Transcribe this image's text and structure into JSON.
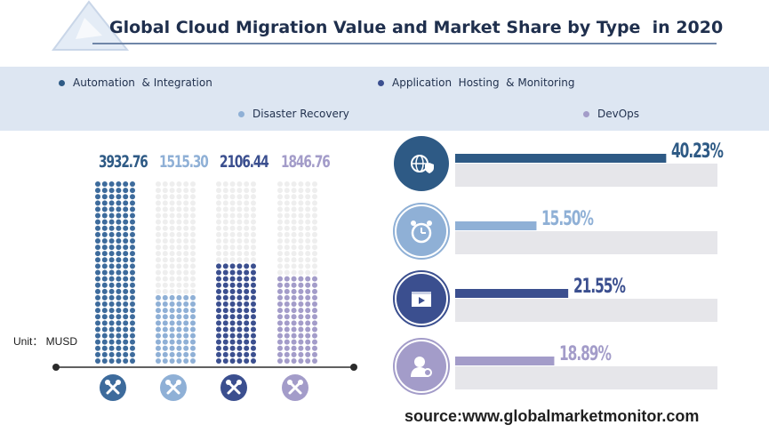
{
  "title": "Global Cloud Migration Value and Market Share by Type  in 2020",
  "unit_label": "Unit： MUSD",
  "source": "source:www.globalmarketmonitor.com",
  "legend": [
    {
      "label": "Automation  & Integration",
      "color": "#2e5a85"
    },
    {
      "label": "Application  Hosting  & Monitoring",
      "color": "#3b4f8f"
    },
    {
      "label": "Disaster Recovery",
      "color": "#8fb0d6"
    },
    {
      "label": "DevOps",
      "color": "#a39cc9"
    }
  ],
  "chart_data": {
    "type": "bar",
    "categories": [
      "Automation & Integration",
      "Disaster Recovery",
      "Application Hosting & Monitoring",
      "DevOps"
    ],
    "series": [
      {
        "values": [
          3932.76,
          1515.3,
          2106.44,
          1846.76
        ]
      }
    ],
    "value_labels": [
      "3932.76",
      "1515.30",
      "2106.44",
      "1846.76"
    ],
    "colors": [
      "#3d6b9c",
      "#8fb0d6",
      "#3b4f8f",
      "#a39cc9"
    ],
    "ylim": [
      0,
      3932.76
    ]
  },
  "share": {
    "items": [
      {
        "label": "40.23%",
        "value": 40.23,
        "color": "#2e5a85",
        "icon": "globe-shield-icon"
      },
      {
        "label": "15.50%",
        "value": 15.5,
        "color": "#8fb0d6",
        "icon": "alarm-clock-icon"
      },
      {
        "label": "21.55%",
        "value": 21.55,
        "color": "#3b4f8f",
        "icon": "video-player-icon"
      },
      {
        "label": "18.89%",
        "value": 18.89,
        "color": "#a39cc9",
        "icon": "user-gear-icon"
      }
    ]
  }
}
